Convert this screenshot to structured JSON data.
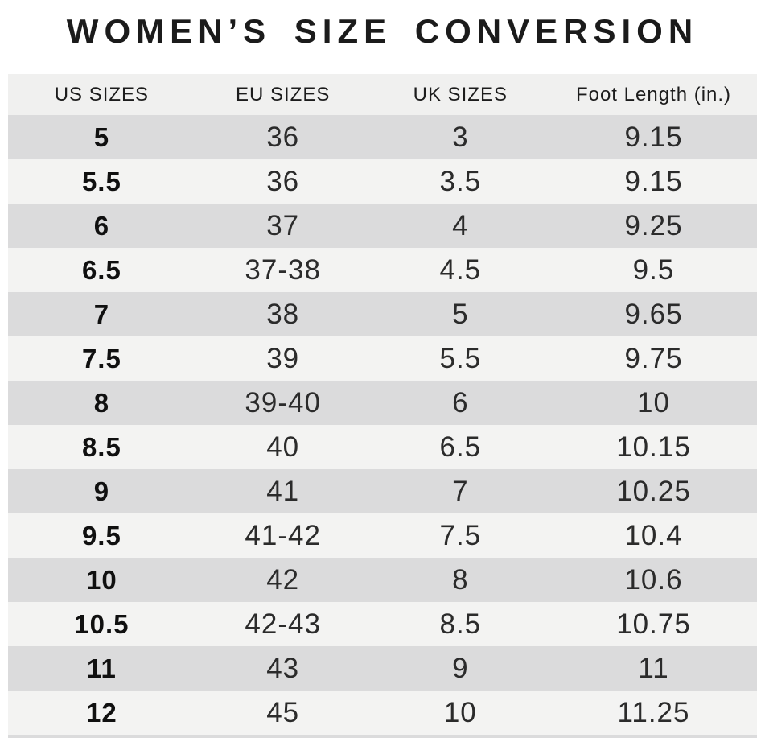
{
  "title": "WOMEN’S SIZE CONVERSION",
  "colors": {
    "title-text": "#1b1b1b",
    "header-bg": "#f0f0ef",
    "row-dark": "#dbdbdc",
    "row-light": "#f3f3f2"
  },
  "chart_data": {
    "type": "table",
    "title": "WOMEN’S SIZE CONVERSION",
    "columns": [
      "US SIZES",
      "EU SIZES",
      "UK SIZES",
      "Foot Length (in.)"
    ],
    "rows": [
      [
        "5",
        "36",
        "3",
        "9.15"
      ],
      [
        "5.5",
        "36",
        "3.5",
        "9.15"
      ],
      [
        "6",
        "37",
        "4",
        "9.25"
      ],
      [
        "6.5",
        "37-38",
        "4.5",
        "9.5"
      ],
      [
        "7",
        "38",
        "5",
        "9.65"
      ],
      [
        "7.5",
        "39",
        "5.5",
        "9.75"
      ],
      [
        "8",
        "39-40",
        "6",
        "10"
      ],
      [
        "8.5",
        "40",
        "6.5",
        "10.15"
      ],
      [
        "9",
        "41",
        "7",
        "10.25"
      ],
      [
        "9.5",
        "41-42",
        "7.5",
        "10.4"
      ],
      [
        "10",
        "42",
        "8",
        "10.6"
      ],
      [
        "10.5",
        "42-43",
        "8.5",
        "10.75"
      ],
      [
        "11",
        "43",
        "9",
        "11"
      ],
      [
        "12",
        "45",
        "10",
        "11.25"
      ]
    ],
    "layout": {
      "stripe_pattern": "alternating, first data row dark",
      "legend": "none",
      "grid": "off"
    }
  }
}
